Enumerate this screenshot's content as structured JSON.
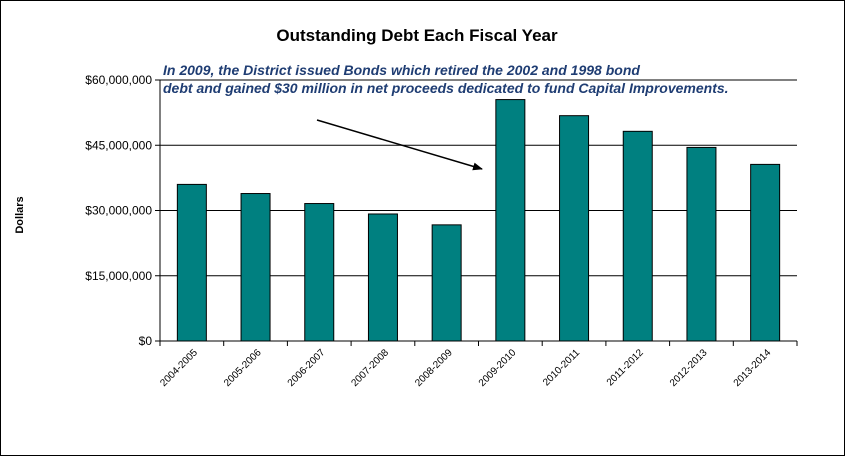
{
  "chart_data": {
    "type": "bar",
    "title": "Outstanding Debt Each Fiscal Year",
    "annotation": [
      "In 2009, the District issued Bonds which retired the 2002 and 1998 bond",
      "debt and gained $30 million in net proceeds dedicated to fund Capital Improvements."
    ],
    "xlabel": "",
    "ylabel": "Dollars",
    "categories": [
      "2004-2005",
      "2005-2006",
      "2006-2007",
      "2007-2008",
      "2008-2009",
      "2009-2010",
      "2010-2011",
      "2011-2012",
      "2012-2013",
      "2013-2014"
    ],
    "values": [
      36000000,
      33900000,
      31600000,
      29200000,
      26700000,
      55500000,
      51800000,
      48200000,
      44500000,
      40600000
    ],
    "ylim": [
      0,
      60000000
    ],
    "yticks": [
      0,
      15000000,
      30000000,
      45000000,
      60000000
    ],
    "ytick_labels": [
      "$0",
      "$15,000,000",
      "$30,000,000",
      "$45,000,000",
      "$60,000,000"
    ],
    "grid": true,
    "legend": "none",
    "colors": {
      "bar": "#008080",
      "bar_outline": "#000000",
      "annotation": "#1f3d73"
    }
  }
}
